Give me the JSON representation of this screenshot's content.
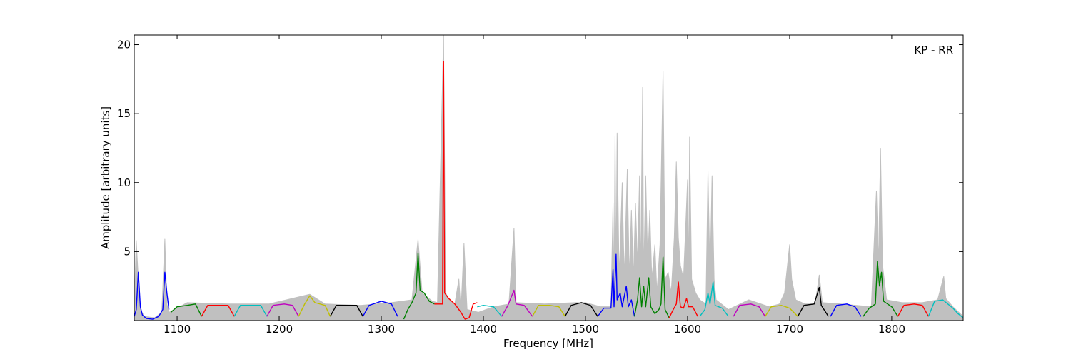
{
  "chart_data": {
    "type": "line",
    "annotation": "KP - RR",
    "xlabel": "Frequency [MHz]",
    "ylabel": "Amplitude [arbitrary units]",
    "xlim": [
      1058,
      1870
    ],
    "ylim": [
      0,
      20.7
    ],
    "x_ticks": [
      1100,
      1200,
      1300,
      1400,
      1500,
      1600,
      1700,
      1800
    ],
    "y_ticks": [
      5,
      10,
      15,
      20
    ],
    "grid": false,
    "legend": "none",
    "background_series": {
      "color": "#c0c0c0",
      "description_hidden": true,
      "points": [
        [
          1058,
          1.2
        ],
        [
          1060,
          5.8
        ],
        [
          1062,
          3.0
        ],
        [
          1064,
          0.8
        ],
        [
          1068,
          0.3
        ],
        [
          1078,
          0.2
        ],
        [
          1085,
          0.6
        ],
        [
          1088,
          5.9
        ],
        [
          1090,
          1.2
        ],
        [
          1092,
          0.6
        ],
        [
          1110,
          1.3
        ],
        [
          1150,
          1.2
        ],
        [
          1190,
          1.2
        ],
        [
          1230,
          1.9
        ],
        [
          1245,
          1.2
        ],
        [
          1280,
          1.1
        ],
        [
          1310,
          1.3
        ],
        [
          1330,
          1.5
        ],
        [
          1336,
          5.9
        ],
        [
          1340,
          2.0
        ],
        [
          1350,
          1.4
        ],
        [
          1355,
          1.3
        ],
        [
          1361,
          20.7
        ],
        [
          1363,
          2.0
        ],
        [
          1366,
          1.6
        ],
        [
          1372,
          1.2
        ],
        [
          1376,
          3.0
        ],
        [
          1378,
          0.6
        ],
        [
          1381,
          5.6
        ],
        [
          1384,
          0.8
        ],
        [
          1395,
          0.6
        ],
        [
          1410,
          1.0
        ],
        [
          1425,
          1.2
        ],
        [
          1430,
          6.7
        ],
        [
          1432,
          1.3
        ],
        [
          1460,
          1.2
        ],
        [
          1490,
          1.3
        ],
        [
          1500,
          1.3
        ],
        [
          1515,
          1.0
        ],
        [
          1525,
          1.0
        ],
        [
          1527,
          8.5
        ],
        [
          1528,
          2.0
        ],
        [
          1529,
          13.4
        ],
        [
          1530,
          3.0
        ],
        [
          1531,
          13.6
        ],
        [
          1533,
          3.0
        ],
        [
          1536,
          10.0
        ],
        [
          1538,
          3.0
        ],
        [
          1541,
          11.0
        ],
        [
          1543,
          3.0
        ],
        [
          1545,
          8.0
        ],
        [
          1547,
          3.0
        ],
        [
          1549,
          8.5
        ],
        [
          1551,
          4.0
        ],
        [
          1553,
          10.5
        ],
        [
          1554,
          3.0
        ],
        [
          1556,
          16.9
        ],
        [
          1557,
          3.0
        ],
        [
          1559,
          10.5
        ],
        [
          1561,
          4.0
        ],
        [
          1563,
          8.0
        ],
        [
          1565,
          3.0
        ],
        [
          1568,
          5.5
        ],
        [
          1570,
          2.0
        ],
        [
          1573,
          5.5
        ],
        [
          1576,
          18.1
        ],
        [
          1578,
          3.0
        ],
        [
          1581,
          3.5
        ],
        [
          1584,
          2.0
        ],
        [
          1587,
          6.0
        ],
        [
          1589,
          11.5
        ],
        [
          1591,
          6.0
        ],
        [
          1593,
          4.0
        ],
        [
          1596,
          3.0
        ],
        [
          1598,
          6.5
        ],
        [
          1600,
          10.2
        ],
        [
          1601,
          3.0
        ],
        [
          1602,
          13.3
        ],
        [
          1604,
          3.0
        ],
        [
          1608,
          2.0
        ],
        [
          1612,
          1.5
        ],
        [
          1618,
          1.2
        ],
        [
          1620,
          10.8
        ],
        [
          1622,
          3.0
        ],
        [
          1624,
          10.5
        ],
        [
          1626,
          3.0
        ],
        [
          1628,
          1.5
        ],
        [
          1640,
          0.8
        ],
        [
          1660,
          1.5
        ],
        [
          1680,
          1.0
        ],
        [
          1690,
          1.2
        ],
        [
          1695,
          2.0
        ],
        [
          1700,
          5.5
        ],
        [
          1702,
          3.0
        ],
        [
          1706,
          1.5
        ],
        [
          1715,
          1.2
        ],
        [
          1725,
          1.2
        ],
        [
          1729,
          3.3
        ],
        [
          1732,
          1.3
        ],
        [
          1750,
          1.2
        ],
        [
          1780,
          1.0
        ],
        [
          1785,
          9.4
        ],
        [
          1787,
          4.0
        ],
        [
          1789,
          12.5
        ],
        [
          1791,
          4.0
        ],
        [
          1795,
          1.5
        ],
        [
          1810,
          1.3
        ],
        [
          1830,
          1.3
        ],
        [
          1845,
          1.5
        ],
        [
          1851,
          3.2
        ],
        [
          1853,
          1.6
        ],
        [
          1860,
          1.0
        ],
        [
          1870,
          0.3
        ]
      ]
    },
    "series": [
      {
        "color": "#0000ff",
        "points": [
          [
            1058,
            0.3
          ],
          [
            1060,
            0.8
          ],
          [
            1062,
            3.5
          ],
          [
            1064,
            1.0
          ],
          [
            1066,
            0.4
          ],
          [
            1070,
            0.15
          ],
          [
            1076,
            0.1
          ],
          [
            1082,
            0.3
          ],
          [
            1086,
            0.8
          ],
          [
            1088,
            3.5
          ],
          [
            1090,
            2.0
          ],
          [
            1092,
            0.8
          ]
        ]
      },
      {
        "color": "#008000",
        "points": [
          [
            1094,
            0.6
          ],
          [
            1100,
            1.0
          ],
          [
            1110,
            1.1
          ],
          [
            1118,
            1.2
          ],
          [
            1124,
            0.3
          ]
        ]
      },
      {
        "color": "#ff0000",
        "points": [
          [
            1124,
            0.3
          ],
          [
            1130,
            1.1
          ],
          [
            1142,
            1.1
          ],
          [
            1150,
            1.1
          ],
          [
            1156,
            0.3
          ]
        ]
      },
      {
        "color": "#00bfbf",
        "points": [
          [
            1156,
            0.3
          ],
          [
            1162,
            1.1
          ],
          [
            1175,
            1.1
          ],
          [
            1182,
            1.1
          ],
          [
            1188,
            0.3
          ]
        ]
      },
      {
        "color": "#bf00bf",
        "points": [
          [
            1188,
            0.3
          ],
          [
            1194,
            1.1
          ],
          [
            1205,
            1.2
          ],
          [
            1213,
            1.1
          ],
          [
            1219,
            0.3
          ]
        ]
      },
      {
        "color": "#bfbf00",
        "points": [
          [
            1219,
            0.3
          ],
          [
            1225,
            1.2
          ],
          [
            1230,
            1.8
          ],
          [
            1235,
            1.3
          ],
          [
            1245,
            1.1
          ],
          [
            1250,
            0.3
          ]
        ]
      },
      {
        "color": "#000000",
        "points": [
          [
            1250,
            0.3
          ],
          [
            1256,
            1.1
          ],
          [
            1268,
            1.1
          ],
          [
            1276,
            1.1
          ],
          [
            1282,
            0.3
          ]
        ]
      },
      {
        "color": "#0000ff",
        "points": [
          [
            1282,
            0.3
          ],
          [
            1288,
            1.1
          ],
          [
            1300,
            1.4
          ],
          [
            1310,
            1.2
          ],
          [
            1316,
            0.3
          ]
        ]
      },
      {
        "color": "#008000",
        "points": [
          [
            1322,
            0.1
          ],
          [
            1326,
            0.8
          ],
          [
            1330,
            1.3
          ],
          [
            1334,
            2.0
          ],
          [
            1336,
            4.9
          ],
          [
            1338,
            2.2
          ],
          [
            1342,
            2.0
          ],
          [
            1347,
            1.4
          ],
          [
            1352,
            1.2
          ]
        ]
      },
      {
        "color": "#ff0000",
        "points": [
          [
            1352,
            1.2
          ],
          [
            1358,
            1.2
          ],
          [
            1360,
            1.2
          ],
          [
            1361,
            18.8
          ],
          [
            1362,
            2.0
          ],
          [
            1366,
            1.6
          ],
          [
            1372,
            1.2
          ],
          [
            1378,
            0.6
          ],
          [
            1382,
            0.1
          ],
          [
            1386,
            0.2
          ],
          [
            1390,
            1.2
          ],
          [
            1394,
            1.3
          ]
        ]
      },
      {
        "color": "#00bfbf",
        "points": [
          [
            1394,
            1.0
          ],
          [
            1400,
            1.1
          ],
          [
            1410,
            1.0
          ],
          [
            1418,
            0.3
          ]
        ]
      },
      {
        "color": "#bf00bf",
        "points": [
          [
            1418,
            0.3
          ],
          [
            1424,
            1.1
          ],
          [
            1430,
            2.2
          ],
          [
            1432,
            1.2
          ],
          [
            1440,
            1.1
          ],
          [
            1448,
            0.3
          ]
        ]
      },
      {
        "color": "#bfbf00",
        "points": [
          [
            1448,
            0.3
          ],
          [
            1454,
            1.1
          ],
          [
            1465,
            1.1
          ],
          [
            1474,
            1.0
          ],
          [
            1480,
            0.3
          ]
        ]
      },
      {
        "color": "#000000",
        "points": [
          [
            1480,
            0.3
          ],
          [
            1486,
            1.1
          ],
          [
            1496,
            1.3
          ],
          [
            1505,
            1.1
          ],
          [
            1512,
            0.3
          ]
        ]
      },
      {
        "color": "#0000ff",
        "points": [
          [
            1512,
            0.3
          ],
          [
            1518,
            0.9
          ],
          [
            1525,
            0.9
          ],
          [
            1527,
            3.7
          ],
          [
            1528,
            1.0
          ],
          [
            1530,
            4.8
          ],
          [
            1531,
            1.5
          ],
          [
            1534,
            2.0
          ],
          [
            1536,
            1.0
          ],
          [
            1540,
            2.5
          ],
          [
            1542,
            1.0
          ],
          [
            1545,
            1.5
          ],
          [
            1548,
            0.3
          ]
        ]
      },
      {
        "color": "#008000",
        "points": [
          [
            1548,
            0.3
          ],
          [
            1551,
            1.5
          ],
          [
            1553,
            3.1
          ],
          [
            1555,
            1.0
          ],
          [
            1557,
            2.5
          ],
          [
            1559,
            1.0
          ],
          [
            1562,
            3.1
          ],
          [
            1564,
            1.0
          ],
          [
            1568,
            0.5
          ],
          [
            1572,
            0.8
          ],
          [
            1574,
            1.2
          ],
          [
            1576,
            4.6
          ],
          [
            1578,
            0.8
          ],
          [
            1582,
            0.2
          ]
        ]
      },
      {
        "color": "#ff0000",
        "points": [
          [
            1582,
            0.2
          ],
          [
            1586,
            0.8
          ],
          [
            1589,
            1.2
          ],
          [
            1591,
            2.8
          ],
          [
            1593,
            1.0
          ],
          [
            1596,
            0.9
          ],
          [
            1599,
            1.6
          ],
          [
            1601,
            1.0
          ],
          [
            1605,
            1.0
          ],
          [
            1610,
            0.3
          ]
        ]
      },
      {
        "color": "#00bfbf",
        "points": [
          [
            1612,
            0.3
          ],
          [
            1617,
            0.8
          ],
          [
            1620,
            2.0
          ],
          [
            1622,
            1.2
          ],
          [
            1625,
            2.8
          ],
          [
            1627,
            1.1
          ],
          [
            1634,
            0.9
          ],
          [
            1640,
            0.3
          ]
        ]
      },
      {
        "color": "#bf00bf",
        "points": [
          [
            1645,
            0.3
          ],
          [
            1651,
            1.1
          ],
          [
            1662,
            1.2
          ],
          [
            1670,
            1.0
          ],
          [
            1676,
            0.3
          ]
        ]
      },
      {
        "color": "#bfbf00",
        "points": [
          [
            1676,
            0.3
          ],
          [
            1682,
            1.0
          ],
          [
            1692,
            1.1
          ],
          [
            1700,
            0.9
          ],
          [
            1708,
            0.3
          ]
        ]
      },
      {
        "color": "#000000",
        "points": [
          [
            1708,
            0.3
          ],
          [
            1714,
            1.1
          ],
          [
            1724,
            1.2
          ],
          [
            1729,
            2.4
          ],
          [
            1731,
            1.1
          ],
          [
            1738,
            0.3
          ]
        ]
      },
      {
        "color": "#0000ff",
        "points": [
          [
            1740,
            0.3
          ],
          [
            1746,
            1.1
          ],
          [
            1756,
            1.2
          ],
          [
            1764,
            1.0
          ],
          [
            1770,
            0.3
          ]
        ]
      },
      {
        "color": "#008000",
        "points": [
          [
            1772,
            0.3
          ],
          [
            1778,
            0.9
          ],
          [
            1784,
            1.2
          ],
          [
            1786,
            4.3
          ],
          [
            1788,
            2.5
          ],
          [
            1790,
            3.5
          ],
          [
            1792,
            1.4
          ],
          [
            1800,
            1.0
          ],
          [
            1806,
            0.3
          ]
        ]
      },
      {
        "color": "#ff0000",
        "points": [
          [
            1806,
            0.3
          ],
          [
            1812,
            1.1
          ],
          [
            1822,
            1.2
          ],
          [
            1830,
            1.1
          ],
          [
            1836,
            0.3
          ]
        ]
      },
      {
        "color": "#00bfbf",
        "points": [
          [
            1836,
            0.3
          ],
          [
            1842,
            1.4
          ],
          [
            1850,
            1.5
          ],
          [
            1860,
            0.9
          ],
          [
            1865,
            0.5
          ],
          [
            1870,
            0.2
          ]
        ]
      }
    ]
  }
}
